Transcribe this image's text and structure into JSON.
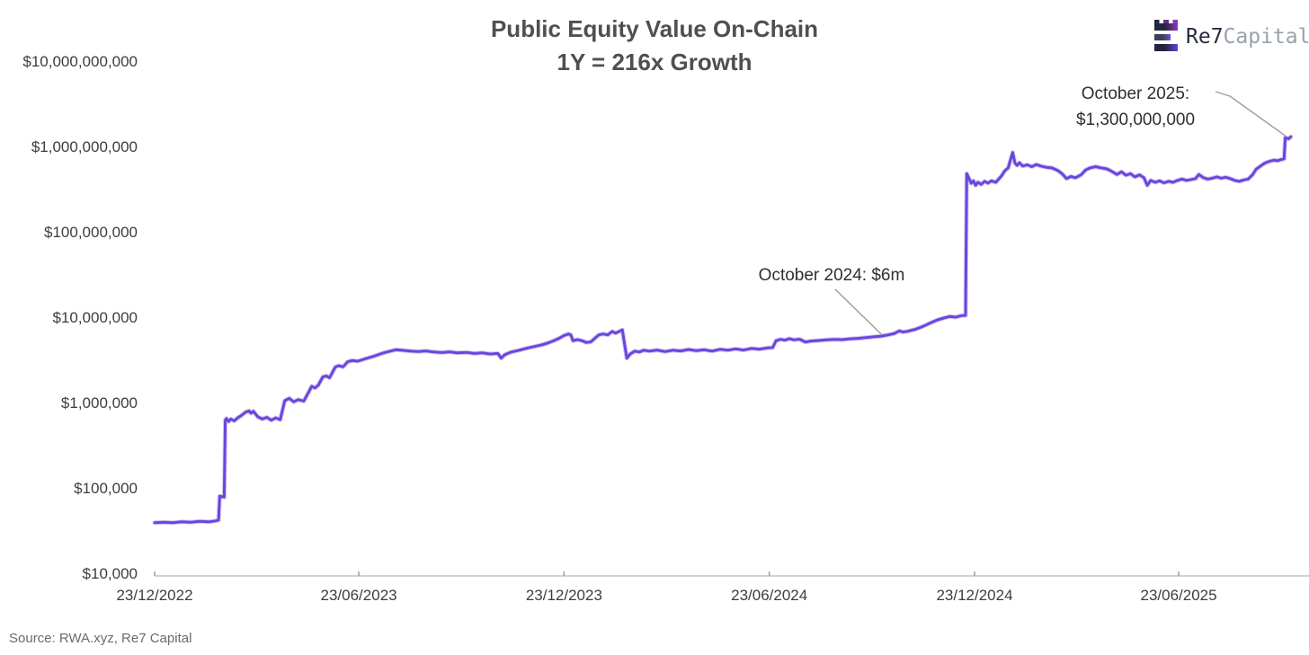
{
  "source_note": "Source: RWA.xyz, Re7 Capital",
  "logo": {
    "name_primary": "Re7",
    "name_secondary": "Capital",
    "icon": "castle-rook-bars-icon",
    "colors": {
      "navy": "#23253c",
      "magenta": "#8d36b8",
      "violet": "#5b45d8",
      "gray_text": "#9ba1ab",
      "dark_text": "#272b40"
    }
  },
  "chart_data": {
    "type": "line",
    "title": "Public Equity Value On-Chain",
    "subtitle": "1Y = 216x Growth",
    "legend": "none",
    "grid": "off",
    "line_color": "#6a46dd",
    "x_axis": {
      "unit": "days since 23/12/2022 (labels DD/MM/YYYY)",
      "ticks": [
        {
          "label": "23/12/2022",
          "d": 0
        },
        {
          "label": "23/06/2023",
          "d": 182
        },
        {
          "label": "23/12/2023",
          "d": 365
        },
        {
          "label": "23/06/2024",
          "d": 548
        },
        {
          "label": "23/12/2024",
          "d": 731
        },
        {
          "label": "23/06/2025",
          "d": 913
        }
      ]
    },
    "y_axis": {
      "scale": "log",
      "unit": "USD",
      "range": [
        10000,
        10000000000
      ],
      "ticks": [
        {
          "label": "$10,000",
          "value": 10000
        },
        {
          "label": "$100,000",
          "value": 100000
        },
        {
          "label": "$1,000,000",
          "value": 1000000
        },
        {
          "label": "$10,000,000",
          "value": 10000000
        },
        {
          "label": "$100,000,000",
          "value": 100000000
        },
        {
          "label": "$1,000,000,000",
          "value": 1000000000
        },
        {
          "label": "$10,000,000,000",
          "value": 10000000000
        }
      ]
    },
    "annotations": [
      {
        "text_lines": [
          "October 2024: $6m"
        ],
        "point_d": 648,
        "point_value": 6000000
      },
      {
        "text_lines": [
          "October 2025:",
          "$1,300,000,000"
        ],
        "point_d": 1008,
        "point_value": 1270000000
      }
    ],
    "series": [
      {
        "name": "Public Equity Value On-Chain (USD)",
        "color": "#6a46dd",
        "points": [
          [
            0,
            39000
          ],
          [
            8,
            39500
          ],
          [
            16,
            39000
          ],
          [
            24,
            40000
          ],
          [
            32,
            39500
          ],
          [
            40,
            40500
          ],
          [
            48,
            40000
          ],
          [
            54,
            41000
          ],
          [
            57,
            42000
          ],
          [
            58,
            80000
          ],
          [
            62,
            78000
          ],
          [
            63,
            620000
          ],
          [
            64,
            650000
          ],
          [
            66,
            600000
          ],
          [
            68,
            640000
          ],
          [
            71,
            610000
          ],
          [
            74,
            660000
          ],
          [
            77,
            700000
          ],
          [
            81,
            770000
          ],
          [
            84,
            800000
          ],
          [
            86,
            750000
          ],
          [
            88,
            790000
          ],
          [
            92,
            680000
          ],
          [
            96,
            640000
          ],
          [
            100,
            670000
          ],
          [
            104,
            620000
          ],
          [
            108,
            660000
          ],
          [
            112,
            630000
          ],
          [
            116,
            1050000
          ],
          [
            120,
            1120000
          ],
          [
            124,
            1020000
          ],
          [
            128,
            1080000
          ],
          [
            133,
            1040000
          ],
          [
            137,
            1300000
          ],
          [
            140,
            1550000
          ],
          [
            143,
            1480000
          ],
          [
            146,
            1600000
          ],
          [
            150,
            2000000
          ],
          [
            153,
            2050000
          ],
          [
            156,
            1950000
          ],
          [
            161,
            2600000
          ],
          [
            164,
            2700000
          ],
          [
            168,
            2620000
          ],
          [
            172,
            3000000
          ],
          [
            176,
            3100000
          ],
          [
            181,
            3050000
          ],
          [
            186,
            3200000
          ],
          [
            191,
            3350000
          ],
          [
            196,
            3500000
          ],
          [
            201,
            3700000
          ],
          [
            205,
            3850000
          ],
          [
            210,
            4000000
          ],
          [
            215,
            4150000
          ],
          [
            220,
            4100000
          ],
          [
            228,
            4000000
          ],
          [
            235,
            3950000
          ],
          [
            242,
            4020000
          ],
          [
            249,
            3900000
          ],
          [
            256,
            3850000
          ],
          [
            263,
            3920000
          ],
          [
            270,
            3820000
          ],
          [
            278,
            3870000
          ],
          [
            285,
            3760000
          ],
          [
            292,
            3820000
          ],
          [
            299,
            3700000
          ],
          [
            306,
            3760000
          ],
          [
            309,
            3300000
          ],
          [
            312,
            3620000
          ],
          [
            318,
            3900000
          ],
          [
            325,
            4100000
          ],
          [
            331,
            4300000
          ],
          [
            338,
            4520000
          ],
          [
            344,
            4700000
          ],
          [
            350,
            4950000
          ],
          [
            355,
            5250000
          ],
          [
            360,
            5600000
          ],
          [
            365,
            6100000
          ],
          [
            369,
            6350000
          ],
          [
            371,
            6200000
          ],
          [
            373,
            5300000
          ],
          [
            377,
            5450000
          ],
          [
            381,
            5300000
          ],
          [
            385,
            5050000
          ],
          [
            389,
            5150000
          ],
          [
            396,
            6200000
          ],
          [
            400,
            6350000
          ],
          [
            404,
            6200000
          ],
          [
            408,
            6800000
          ],
          [
            411,
            6500000
          ],
          [
            415,
            6900000
          ],
          [
            417,
            7100000
          ],
          [
            421,
            3300000
          ],
          [
            424,
            3700000
          ],
          [
            428,
            4000000
          ],
          [
            432,
            3900000
          ],
          [
            436,
            4100000
          ],
          [
            441,
            4000000
          ],
          [
            448,
            4120000
          ],
          [
            455,
            3950000
          ],
          [
            462,
            4100000
          ],
          [
            469,
            4020000
          ],
          [
            476,
            4180000
          ],
          [
            483,
            4050000
          ],
          [
            490,
            4150000
          ],
          [
            497,
            4000000
          ],
          [
            504,
            4200000
          ],
          [
            511,
            4100000
          ],
          [
            518,
            4250000
          ],
          [
            525,
            4120000
          ],
          [
            532,
            4300000
          ],
          [
            539,
            4220000
          ],
          [
            546,
            4350000
          ],
          [
            551,
            4400000
          ],
          [
            554,
            5300000
          ],
          [
            558,
            5500000
          ],
          [
            562,
            5380000
          ],
          [
            566,
            5600000
          ],
          [
            570,
            5420000
          ],
          [
            575,
            5520000
          ],
          [
            580,
            5120000
          ],
          [
            585,
            5250000
          ],
          [
            592,
            5320000
          ],
          [
            599,
            5420000
          ],
          [
            606,
            5500000
          ],
          [
            613,
            5450000
          ],
          [
            620,
            5580000
          ],
          [
            627,
            5650000
          ],
          [
            634,
            5750000
          ],
          [
            641,
            5880000
          ],
          [
            648,
            6000000
          ],
          [
            654,
            6200000
          ],
          [
            659,
            6400000
          ],
          [
            664,
            6900000
          ],
          [
            667,
            6700000
          ],
          [
            671,
            6820000
          ],
          [
            678,
            7200000
          ],
          [
            685,
            7800000
          ],
          [
            692,
            8600000
          ],
          [
            698,
            9300000
          ],
          [
            704,
            9800000
          ],
          [
            709,
            10200000
          ],
          [
            714,
            10000000
          ],
          [
            719,
            10400000
          ],
          [
            723,
            10500000
          ],
          [
            724,
            480000000
          ],
          [
            726,
            420000000
          ],
          [
            728,
            370000000
          ],
          [
            730,
            395000000
          ],
          [
            732,
            350000000
          ],
          [
            734,
            380000000
          ],
          [
            737,
            360000000
          ],
          [
            740,
            390000000
          ],
          [
            743,
            372000000
          ],
          [
            746,
            395000000
          ],
          [
            750,
            380000000
          ],
          [
            755,
            450000000
          ],
          [
            758,
            520000000
          ],
          [
            761,
            560000000
          ],
          [
            765,
            850000000
          ],
          [
            767,
            640000000
          ],
          [
            769,
            600000000
          ],
          [
            771,
            645000000
          ],
          [
            774,
            590000000
          ],
          [
            778,
            610000000
          ],
          [
            782,
            580000000
          ],
          [
            786,
            615000000
          ],
          [
            790,
            590000000
          ],
          [
            795,
            570000000
          ],
          [
            800,
            560000000
          ],
          [
            805,
            525000000
          ],
          [
            809,
            480000000
          ],
          [
            813,
            420000000
          ],
          [
            817,
            445000000
          ],
          [
            821,
            430000000
          ],
          [
            826,
            465000000
          ],
          [
            830,
            530000000
          ],
          [
            834,
            560000000
          ],
          [
            839,
            580000000
          ],
          [
            844,
            560000000
          ],
          [
            849,
            545000000
          ],
          [
            854,
            505000000
          ],
          [
            858,
            470000000
          ],
          [
            862,
            505000000
          ],
          [
            866,
            460000000
          ],
          [
            870,
            480000000
          ],
          [
            874,
            440000000
          ],
          [
            878,
            465000000
          ],
          [
            882,
            430000000
          ],
          [
            885,
            350000000
          ],
          [
            888,
            400000000
          ],
          [
            892,
            380000000
          ],
          [
            896,
            395000000
          ],
          [
            900,
            375000000
          ],
          [
            904,
            390000000
          ],
          [
            908,
            380000000
          ],
          [
            912,
            400000000
          ],
          [
            916,
            415000000
          ],
          [
            920,
            400000000
          ],
          [
            924,
            410000000
          ],
          [
            928,
            420000000
          ],
          [
            931,
            470000000
          ],
          [
            935,
            430000000
          ],
          [
            939,
            415000000
          ],
          [
            943,
            425000000
          ],
          [
            947,
            440000000
          ],
          [
            951,
            425000000
          ],
          [
            955,
            435000000
          ],
          [
            959,
            420000000
          ],
          [
            963,
            400000000
          ],
          [
            967,
            390000000
          ],
          [
            971,
            405000000
          ],
          [
            975,
            415000000
          ],
          [
            979,
            470000000
          ],
          [
            982,
            540000000
          ],
          [
            986,
            590000000
          ],
          [
            990,
            640000000
          ],
          [
            994,
            670000000
          ],
          [
            998,
            690000000
          ],
          [
            1001,
            680000000
          ],
          [
            1004,
            700000000
          ],
          [
            1007,
            715000000
          ],
          [
            1008,
            1270000000
          ],
          [
            1011,
            1230000000
          ],
          [
            1013,
            1300000000
          ]
        ]
      }
    ]
  }
}
